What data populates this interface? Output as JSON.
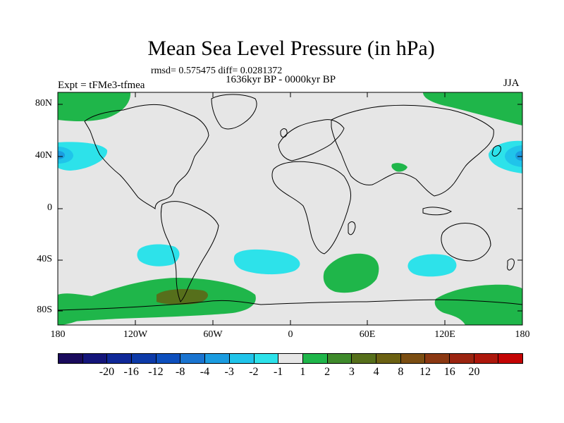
{
  "title": "Mean Sea Level Pressure (in hPa)",
  "stats": "rmsd= 0.575475 diff= 0.0281372",
  "period": "1636kyr BP - 0000kyr BP",
  "experiment": "Expt = tFMe3-tfmea",
  "season": "JJA",
  "y_ticks": [
    "80N",
    "40N",
    "0",
    "40S",
    "80S"
  ],
  "x_ticks": [
    "180",
    "120W",
    "60W",
    "0",
    "60E",
    "120E",
    "180"
  ],
  "colorbar": {
    "colors": [
      "#1a0a5c",
      "#14157a",
      "#0f2898",
      "#0d3aa8",
      "#0d4fbd",
      "#1a74d0",
      "#1b9ce0",
      "#20c4ea",
      "#2de2ea",
      "#e6e6e6",
      "#1fb64a",
      "#3e8a2b",
      "#566f1b",
      "#6b6112",
      "#7b4e12",
      "#8b3812",
      "#9b2410",
      "#ad170c",
      "#c40404"
    ],
    "labels": [
      "-20",
      "-16",
      "-12",
      "-8",
      "-4",
      "-3",
      "-2",
      "-1",
      "1",
      "2",
      "3",
      "4",
      "8",
      "12",
      "16",
      "20"
    ]
  },
  "legend_colors": {
    "neutral": "#e6e6e6",
    "positive_light": "#1fb64a",
    "positive_strong": "#566f1b",
    "negative_light": "#2de2ea",
    "negative_mid": "#20c4ea",
    "negative_strong": "#1b9ce0"
  }
}
